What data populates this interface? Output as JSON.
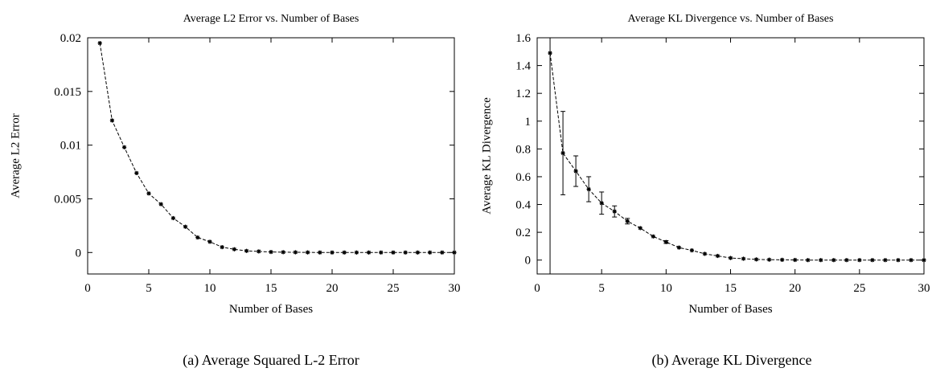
{
  "chart_data": [
    {
      "type": "line",
      "title": "Average L2 Error vs. Number of Bases",
      "xlabel": "Number of Bases",
      "ylabel": "Average L2 Error",
      "caption": "(a) Average Squared L-2 Error",
      "xlim": [
        0,
        30
      ],
      "ylim": [
        -0.002,
        0.02
      ],
      "xticks": [
        "0",
        "5",
        "10",
        "15",
        "20",
        "25",
        "30"
      ],
      "yticks": [
        "0",
        "0.005",
        "0.01",
        "0.015",
        "0.02"
      ],
      "grid": false,
      "series": [
        {
          "x": [
            1,
            2,
            3,
            4,
            5,
            6,
            7,
            8,
            9,
            10,
            11,
            12,
            13,
            14,
            15,
            16,
            17,
            18,
            19,
            20,
            21,
            22,
            23,
            24,
            25,
            26,
            27,
            28,
            29,
            30
          ],
          "y": [
            0.0195,
            0.0123,
            0.0098,
            0.0074,
            0.0055,
            0.0045,
            0.0032,
            0.0024,
            0.0014,
            0.001,
            0.0005,
            0.0003,
            0.00015,
            0.0001,
            5e-05,
            3e-05,
            2e-05,
            1e-05,
            0,
            0,
            0,
            0,
            0,
            0,
            0,
            0,
            0,
            0,
            0,
            0
          ]
        }
      ]
    },
    {
      "type": "line",
      "title": "Average KL Divergence vs. Number of Bases",
      "xlabel": "Number of Bases",
      "ylabel": "Average KL Divergence",
      "caption": "(b) Average KL Divergence",
      "xlim": [
        0,
        30
      ],
      "ylim": [
        -0.1,
        1.6
      ],
      "xticks": [
        "0",
        "5",
        "10",
        "15",
        "20",
        "25",
        "30"
      ],
      "yticks": [
        "0",
        "0.2",
        "0.4",
        "0.6",
        "0.8",
        "1",
        "1.2",
        "1.4",
        "1.6"
      ],
      "grid": false,
      "series": [
        {
          "x": [
            1,
            2,
            3,
            4,
            5,
            6,
            7,
            8,
            9,
            10,
            11,
            12,
            13,
            14,
            15,
            16,
            17,
            18,
            19,
            20,
            21,
            22,
            23,
            24,
            25,
            26,
            27,
            28,
            29,
            30
          ],
          "y": [
            1.49,
            0.77,
            0.64,
            0.51,
            0.41,
            0.35,
            0.28,
            0.23,
            0.17,
            0.13,
            0.09,
            0.07,
            0.045,
            0.03,
            0.015,
            0.01,
            0.005,
            0.003,
            0.002,
            0.001,
            0,
            0,
            0,
            0,
            0,
            0,
            0,
            0,
            0,
            0
          ],
          "err_low": [
            -0.1,
            0.47,
            0.53,
            0.42,
            0.33,
            0.31,
            0.26,
            0.22,
            0.16,
            0.12,
            0.085,
            0.065,
            0.04,
            0.027,
            0.013,
            0.008,
            0.004,
            0.002,
            0.001,
            0,
            0,
            0,
            0,
            0,
            0,
            0,
            0,
            0,
            0,
            0
          ],
          "err_high": [
            1.6,
            1.07,
            0.75,
            0.6,
            0.49,
            0.39,
            0.3,
            0.24,
            0.18,
            0.14,
            0.095,
            0.075,
            0.05,
            0.033,
            0.017,
            0.012,
            0.006,
            0.004,
            0.003,
            0.002,
            0,
            0,
            0,
            0,
            0,
            0,
            0,
            0,
            0,
            0
          ]
        }
      ]
    }
  ]
}
